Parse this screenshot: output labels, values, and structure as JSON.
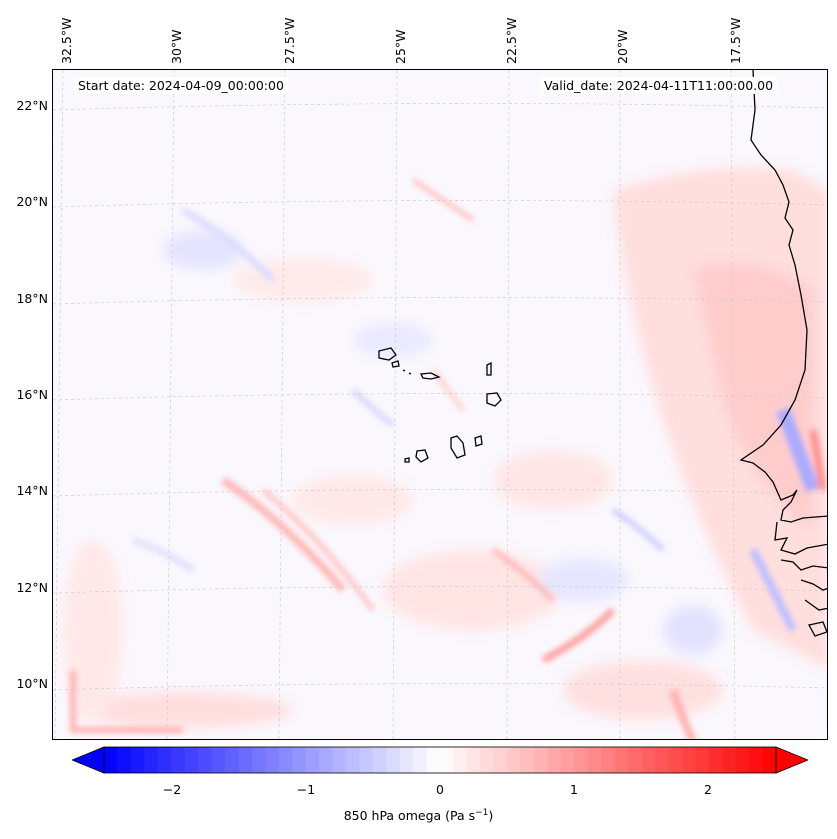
{
  "map": {
    "start_date": "Start date: 2024-04-09_00:00:00",
    "valid_date": "Valid_date: 2024-04-11T11:00:00.00",
    "lon_labels": [
      "32.5°W",
      "30°W",
      "27.5°W",
      "25°W",
      "22.5°W",
      "20°W",
      "17.5°W"
    ],
    "lat_labels": [
      "22°N",
      "20°N",
      "18°N",
      "16°N",
      "14°N",
      "12°N",
      "10°N"
    ],
    "extent": {
      "lon_min": -33.0,
      "lon_max": -15.5,
      "lat_min": 9.0,
      "lat_max": 22.5
    },
    "colors": {
      "positive": "#ff0000",
      "negative": "#0000ff",
      "neutral": "#ffffff",
      "coastline": "#000000",
      "grid": "#cccccc"
    }
  },
  "colorbar": {
    "label_main": "850 hPa omega (Pa s",
    "label_sup": "−1",
    "label_end": ")",
    "ticks": [
      "−2",
      "−1",
      "0",
      "1",
      "2"
    ],
    "range": [
      -2.75,
      2.75
    ],
    "colormap": "bwr"
  }
}
